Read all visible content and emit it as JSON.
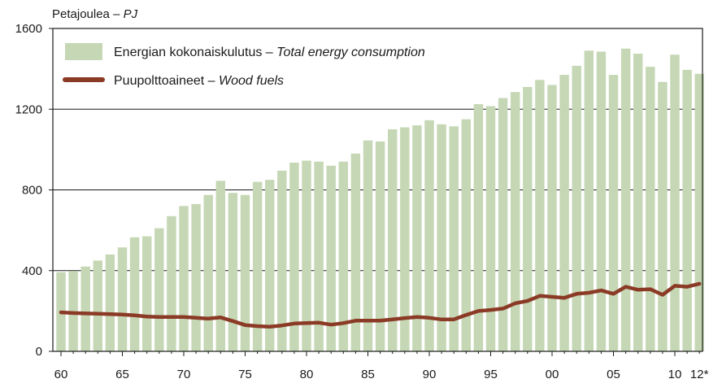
{
  "chart_data": {
    "type": "bar",
    "ylabel_fi": "Petajoulea",
    "ylabel_sep": " – ",
    "ylabel_en": "PJ",
    "ylim": [
      0,
      1600
    ],
    "yticks": [
      "0",
      "400",
      "800",
      "1200",
      "1600"
    ],
    "x_first_year": 1960,
    "xtick_labels": [
      "60",
      "65",
      "70",
      "75",
      "80",
      "85",
      "90",
      "95",
      "00",
      "05",
      "10",
      "12*"
    ],
    "grid": "horizontal",
    "legend_position": "top-left",
    "colors": {
      "bars": "#c5d7b4",
      "line": "#8b3a26",
      "axis": "#1a1a1a",
      "grid": "#1a1a1a"
    },
    "legend": [
      {
        "fi": "Energian kokonaiskulutus",
        "sep": " – ",
        "en": "Total energy consumption"
      },
      {
        "fi": "Puupolttoaineet",
        "sep": " – ",
        "en": "Wood fuels"
      }
    ],
    "series": [
      {
        "kind": "bar",
        "values": [
          392,
          398,
          420,
          450,
          480,
          515,
          565,
          570,
          610,
          670,
          720,
          730,
          775,
          845,
          785,
          775,
          840,
          850,
          895,
          935,
          945,
          940,
          920,
          940,
          980,
          1045,
          1040,
          1100,
          1110,
          1120,
          1145,
          1125,
          1115,
          1150,
          1225,
          1215,
          1255,
          1285,
          1310,
          1345,
          1320,
          1370,
          1415,
          1490,
          1485,
          1370,
          1500,
          1475,
          1410,
          1335,
          1470,
          1395,
          1375
        ]
      },
      {
        "kind": "line",
        "values": [
          193,
          190,
          188,
          186,
          184,
          182,
          178,
          172,
          170,
          170,
          170,
          166,
          162,
          168,
          150,
          130,
          125,
          122,
          128,
          138,
          140,
          142,
          132,
          140,
          152,
          152,
          152,
          158,
          165,
          170,
          166,
          158,
          158,
          180,
          200,
          205,
          212,
          238,
          250,
          275,
          270,
          265,
          285,
          290,
          302,
          285,
          320,
          305,
          308,
          280,
          325,
          320,
          335
        ]
      }
    ]
  }
}
